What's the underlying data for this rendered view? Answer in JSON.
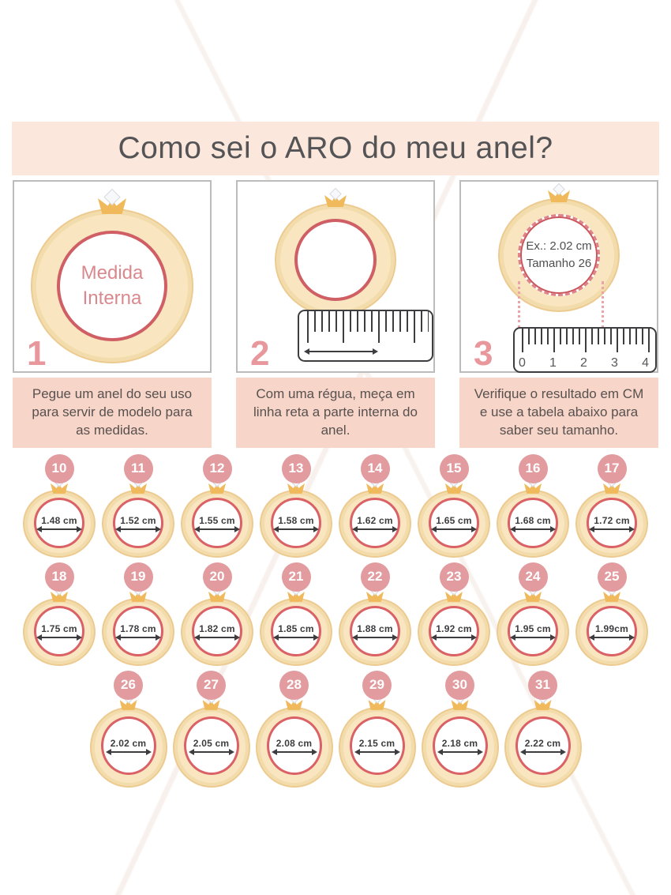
{
  "header": {
    "title": "Como sei o ARO do meu anel?"
  },
  "steps": [
    {
      "number": "1",
      "ring_text_line1": "Medida",
      "ring_text_line2": "Interna",
      "caption": "Pegue um anel do seu uso para servir de modelo para as medidas."
    },
    {
      "number": "2",
      "caption": "Com uma régua, meça em linha reta a parte interna do anel."
    },
    {
      "number": "3",
      "example_line1": "Ex.: 2.02 cm",
      "example_line2": "Tamanho 26",
      "ruler_labels": [
        "0",
        "1",
        "2",
        "3",
        "4"
      ],
      "caption": "Verifique o resultado em CM e use a tabela abaixo para saber seu tamanho."
    }
  ],
  "size_table": {
    "rows": [
      [
        {
          "size": "10",
          "diameter": "1.48 cm"
        },
        {
          "size": "11",
          "diameter": "1.52 cm"
        },
        {
          "size": "12",
          "diameter": "1.55 cm"
        },
        {
          "size": "13",
          "diameter": "1.58 cm"
        },
        {
          "size": "14",
          "diameter": "1.62 cm"
        },
        {
          "size": "15",
          "diameter": "1.65 cm"
        },
        {
          "size": "16",
          "diameter": "1.68 cm"
        },
        {
          "size": "17",
          "diameter": "1.72 cm"
        }
      ],
      [
        {
          "size": "18",
          "diameter": "1.75 cm"
        },
        {
          "size": "19",
          "diameter": "1.78 cm"
        },
        {
          "size": "20",
          "diameter": "1.82 cm"
        },
        {
          "size": "21",
          "diameter": "1.85 cm"
        },
        {
          "size": "22",
          "diameter": "1.88 cm"
        },
        {
          "size": "23",
          "diameter": "1.92 cm"
        },
        {
          "size": "24",
          "diameter": "1.95 cm"
        },
        {
          "size": "25",
          "diameter": "1.99cm"
        }
      ],
      [
        {
          "size": "26",
          "diameter": "2.02 cm"
        },
        {
          "size": "27",
          "diameter": "2.05 cm"
        },
        {
          "size": "28",
          "diameter": "2.08 cm"
        },
        {
          "size": "29",
          "diameter": "2.15 cm"
        },
        {
          "size": "30",
          "diameter": "2.18 cm"
        },
        {
          "size": "31",
          "diameter": "2.22 cm"
        }
      ]
    ]
  },
  "colors": {
    "accent_rose": "#e29b9e",
    "banner_bg": "#fbe7dc",
    "caption_bg": "#f8d5c9",
    "gold_band": "#f9e6c1",
    "gold_border": "#ecca90",
    "inner_ring_red": "#d06065",
    "text_dark": "#57514f"
  }
}
